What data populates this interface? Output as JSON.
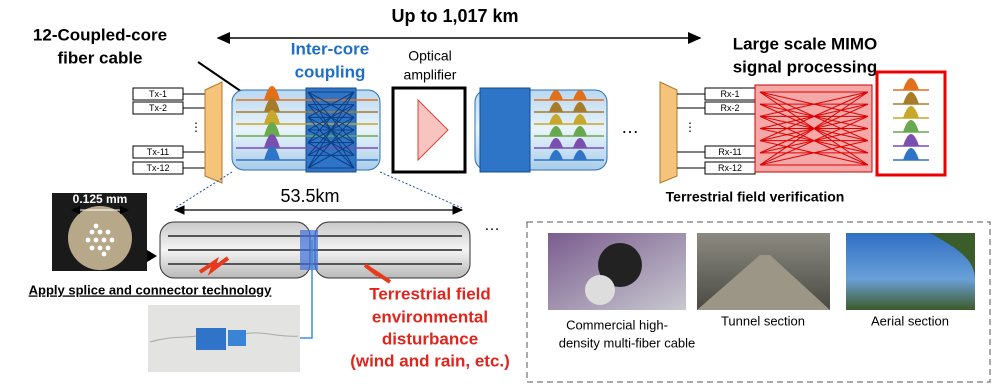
{
  "header": {
    "distance": "Up to 1,017 km"
  },
  "labels": {
    "cable": [
      "12-Coupled-core",
      "fiber cable"
    ],
    "coupling": [
      "Inter-core",
      "coupling"
    ],
    "amplifier": [
      "Optical",
      "amplifier"
    ],
    "mimo": [
      "Large scale MIMO",
      "signal processing"
    ]
  },
  "tx": [
    "Tx-1",
    "Tx-2",
    "Tx-11",
    "Tx-12"
  ],
  "rx": [
    "Rx-1",
    "Rx-2",
    "Rx-11",
    "Rx-12"
  ],
  "ellipsis": "…",
  "span": "53.5km",
  "diameter": "0.125 mm",
  "splice": "Apply splice and connector technology",
  "disturbance": [
    "Terrestrial field",
    "environmental",
    "disturbance",
    "(wind and rain, etc.)"
  ],
  "verification": {
    "title": "Terrestrial field verification",
    "photos": [
      {
        "caption": [
          "Commercial high-",
          "density multi-fiber cable"
        ]
      },
      {
        "caption": [
          "Tunnel section"
        ]
      },
      {
        "caption": [
          "Aerial section"
        ]
      }
    ]
  }
}
